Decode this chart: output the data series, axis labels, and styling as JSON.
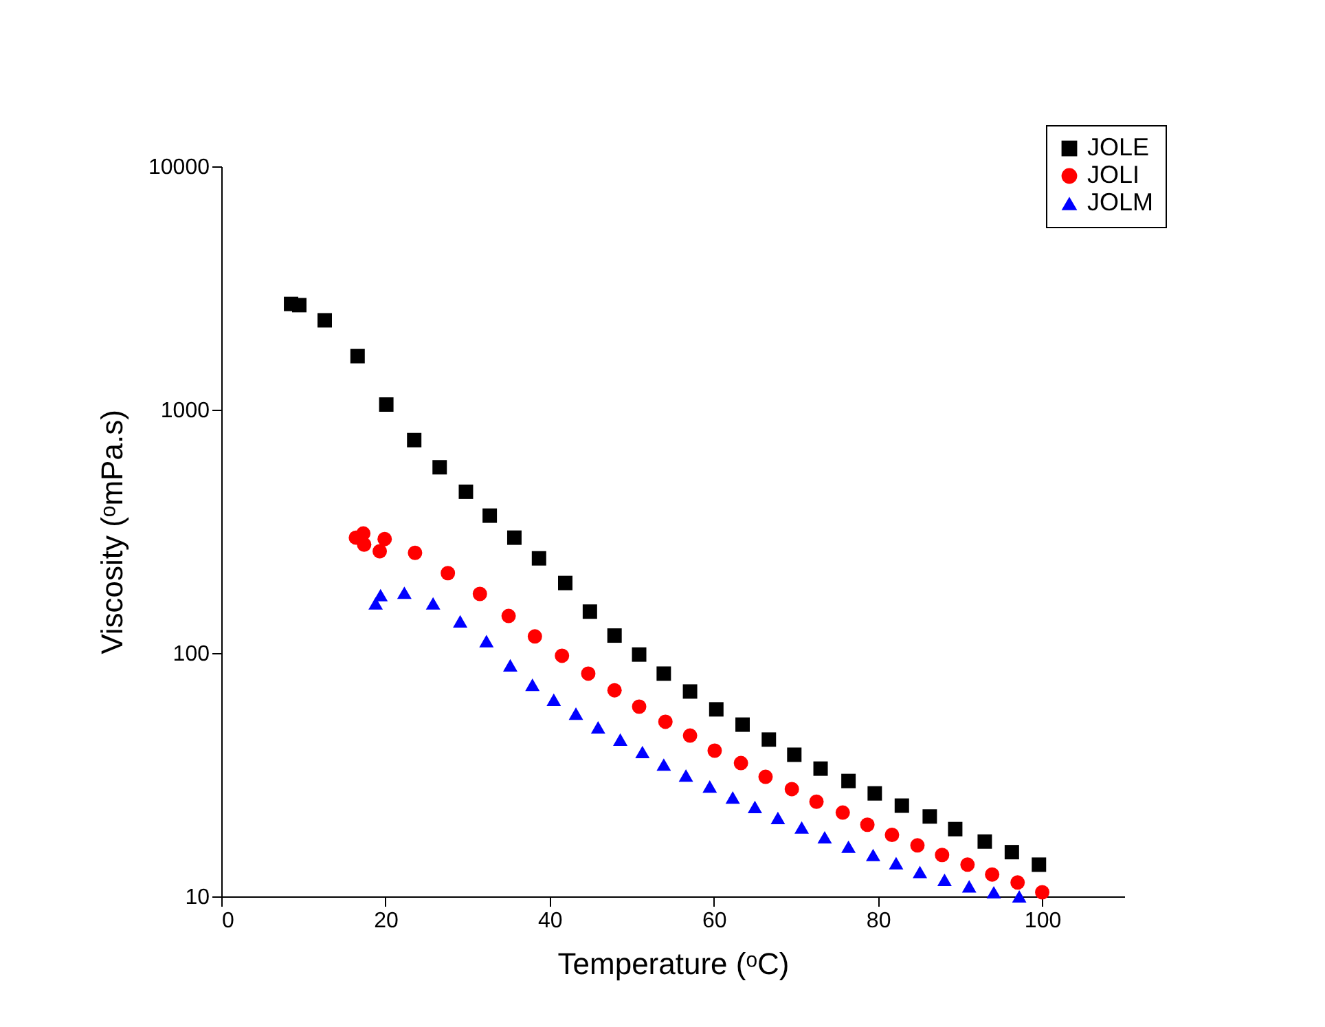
{
  "chart_data": {
    "type": "scatter",
    "xlabel": "Temperature (ᵒC)",
    "ylabel": "Viscosity (ᵒmPa.s)",
    "xlim": [
      0,
      110
    ],
    "xticks": [
      0,
      20,
      40,
      60,
      80,
      100
    ],
    "ylim": [
      10,
      10000
    ],
    "yticks": [
      10,
      100,
      1000,
      10000
    ],
    "log": "y",
    "grid": false,
    "legend": "top right",
    "series": [
      {
        "name": "JOLE",
        "color": "#000000",
        "marker": "square",
        "x": [
          8.5,
          9.5,
          12.6,
          16.6,
          20.1,
          23.5,
          26.6,
          29.8,
          32.7,
          35.7,
          38.7,
          41.9,
          44.9,
          47.9,
          50.9,
          53.9,
          57.1,
          60.3,
          63.5,
          66.7,
          69.8,
          73.0,
          76.4,
          79.6,
          82.9,
          86.3,
          89.4,
          93.0,
          96.3,
          99.6
        ],
        "values": [
          2720,
          2690,
          2330,
          1660,
          1050,
          750,
          580,
          460,
          367,
          298,
          245,
          194,
          148,
          118,
          98.6,
          82.3,
          69.5,
          58.7,
          50.8,
          44.1,
          38.2,
          33.5,
          29.8,
          26.5,
          23.6,
          21.3,
          18.9,
          16.8,
          15.2,
          13.5
        ]
      },
      {
        "name": "JOLI",
        "color": "#ff0000",
        "marker": "circle",
        "x": [
          16.4,
          17.3,
          17.4,
          19.3,
          19.9,
          23.6,
          27.6,
          31.5,
          35.0,
          38.2,
          41.5,
          44.7,
          47.9,
          50.9,
          54.1,
          57.1,
          60.1,
          63.3,
          66.3,
          69.5,
          72.5,
          75.7,
          78.7,
          81.7,
          84.8,
          87.8,
          90.9,
          93.9,
          97.0,
          100.0
        ],
        "values": [
          298,
          310,
          279,
          262,
          294,
          258,
          213,
          175,
          142,
          117,
          97.5,
          82.3,
          70.3,
          60.2,
          52.2,
          45.8,
          39.7,
          35.3,
          31.0,
          27.6,
          24.5,
          22.1,
          19.7,
          17.9,
          16.2,
          14.8,
          13.5,
          12.3,
          11.4,
          10.4
        ]
      },
      {
        "name": "JOLM",
        "color": "#0000ff",
        "marker": "triangle",
        "x": [
          18.8,
          19.4,
          22.3,
          25.8,
          29.1,
          32.3,
          35.2,
          37.9,
          40.5,
          43.2,
          45.9,
          48.6,
          51.3,
          53.9,
          56.6,
          59.5,
          62.3,
          65.0,
          67.8,
          70.7,
          73.5,
          76.4,
          79.4,
          82.2,
          85.1,
          88.1,
          91.1,
          94.1,
          97.2
        ],
        "values": [
          160,
          173,
          177,
          160,
          135,
          112,
          89,
          74.1,
          64.3,
          56.4,
          49.5,
          44.1,
          39.2,
          34.8,
          31.4,
          28.3,
          25.5,
          23.3,
          21.0,
          19.2,
          17.5,
          16.0,
          14.8,
          13.7,
          12.6,
          11.7,
          11.0,
          10.4,
          10.0
        ]
      }
    ]
  }
}
